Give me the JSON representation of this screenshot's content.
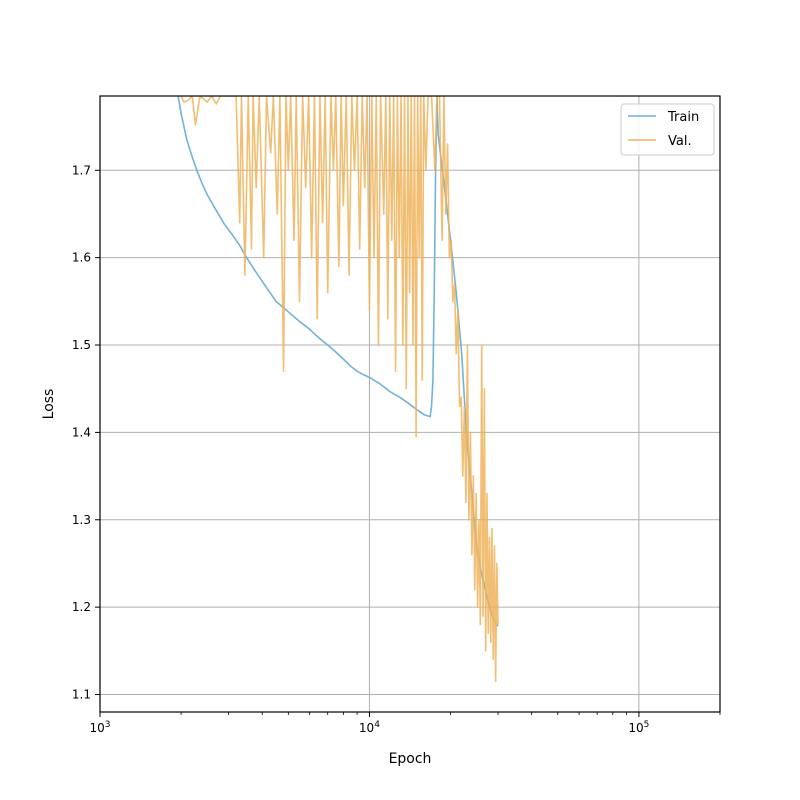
{
  "chart_data": {
    "type": "line",
    "title": "",
    "xlabel": "Epoch",
    "ylabel": "Loss",
    "xscale": "log",
    "xlim": [
      1000,
      200000
    ],
    "ylim": [
      1.08,
      1.785
    ],
    "grid": true,
    "legend_position": "top-right",
    "x_major_ticks": [
      {
        "value": 1000,
        "base": "10",
        "exp": "3"
      },
      {
        "value": 10000,
        "base": "10",
        "exp": "4"
      },
      {
        "value": 100000,
        "base": "10",
        "exp": "5"
      }
    ],
    "y_ticks": [
      {
        "value": 1.1,
        "label": "1.1"
      },
      {
        "value": 1.2,
        "label": "1.2"
      },
      {
        "value": 1.3,
        "label": "1.3"
      },
      {
        "value": 1.4,
        "label": "1.4"
      },
      {
        "value": 1.5,
        "label": "1.5"
      },
      {
        "value": 1.6,
        "label": "1.6"
      },
      {
        "value": 1.7,
        "label": "1.7"
      }
    ],
    "series": [
      {
        "name": "Train",
        "color": "#6baed6",
        "points": [
          [
            1950,
            1.785
          ],
          [
            2000,
            1.765
          ],
          [
            2100,
            1.735
          ],
          [
            2200,
            1.715
          ],
          [
            2300,
            1.698
          ],
          [
            2400,
            1.684
          ],
          [
            2500,
            1.672
          ],
          [
            2700,
            1.654
          ],
          [
            2900,
            1.638
          ],
          [
            3100,
            1.626
          ],
          [
            3300,
            1.614
          ],
          [
            3500,
            1.6
          ],
          [
            3800,
            1.583
          ],
          [
            4100,
            1.568
          ],
          [
            4500,
            1.55
          ],
          [
            5000,
            1.538
          ],
          [
            5500,
            1.527
          ],
          [
            6000,
            1.518
          ],
          [
            6500,
            1.508
          ],
          [
            7000,
            1.5
          ],
          [
            7500,
            1.492
          ],
          [
            8000,
            1.484
          ],
          [
            8500,
            1.476
          ],
          [
            9000,
            1.47
          ],
          [
            9500,
            1.466
          ],
          [
            10000,
            1.463
          ],
          [
            11000,
            1.455
          ],
          [
            12000,
            1.446
          ],
          [
            13000,
            1.44
          ],
          [
            14000,
            1.433
          ],
          [
            15000,
            1.426
          ],
          [
            16000,
            1.42
          ],
          [
            16800,
            1.418
          ],
          [
            17000,
            1.43
          ],
          [
            17200,
            1.46
          ],
          [
            17400,
            1.56
          ],
          [
            17600,
            1.7
          ],
          [
            17800,
            1.785
          ],
          [
            18000,
            1.74
          ],
          [
            19000,
            1.68
          ],
          [
            20000,
            1.62
          ],
          [
            21000,
            1.56
          ],
          [
            22000,
            1.49
          ],
          [
            23000,
            1.39
          ],
          [
            24000,
            1.33
          ],
          [
            25000,
            1.27
          ],
          [
            26000,
            1.24
          ],
          [
            27000,
            1.218
          ],
          [
            28000,
            1.198
          ],
          [
            29000,
            1.185
          ],
          [
            30000,
            1.178
          ]
        ]
      },
      {
        "name": "Val.",
        "color": "#f0b35a",
        "points": [
          [
            2000,
            1.785
          ],
          [
            2050,
            1.778
          ],
          [
            2120,
            1.78
          ],
          [
            2200,
            1.785
          ],
          [
            2260,
            1.752
          ],
          [
            2350,
            1.785
          ],
          [
            2500,
            1.778
          ],
          [
            2600,
            1.785
          ],
          [
            2700,
            1.776
          ],
          [
            2800,
            1.785
          ],
          [
            3200,
            1.785
          ],
          [
            3300,
            1.64
          ],
          [
            3350,
            1.785
          ],
          [
            3450,
            1.58
          ],
          [
            3550,
            1.785
          ],
          [
            3650,
            1.61
          ],
          [
            3700,
            1.785
          ],
          [
            3800,
            1.68
          ],
          [
            3900,
            1.785
          ],
          [
            4050,
            1.6
          ],
          [
            4150,
            1.785
          ],
          [
            4300,
            1.72
          ],
          [
            4400,
            1.785
          ],
          [
            4550,
            1.65
          ],
          [
            4650,
            1.785
          ],
          [
            4800,
            1.47
          ],
          [
            4900,
            1.785
          ],
          [
            5000,
            1.7
          ],
          [
            5100,
            1.785
          ],
          [
            5250,
            1.62
          ],
          [
            5350,
            1.785
          ],
          [
            5500,
            1.55
          ],
          [
            5650,
            1.785
          ],
          [
            5800,
            1.68
          ],
          [
            5950,
            1.785
          ],
          [
            6100,
            1.6
          ],
          [
            6250,
            1.785
          ],
          [
            6400,
            1.53
          ],
          [
            6550,
            1.785
          ],
          [
            6700,
            1.64
          ],
          [
            6850,
            1.785
          ],
          [
            7000,
            1.56
          ],
          [
            7200,
            1.785
          ],
          [
            7350,
            1.7
          ],
          [
            7500,
            1.785
          ],
          [
            7700,
            1.59
          ],
          [
            7850,
            1.785
          ],
          [
            8000,
            1.66
          ],
          [
            8200,
            1.785
          ],
          [
            8400,
            1.58
          ],
          [
            8600,
            1.785
          ],
          [
            8800,
            1.7
          ],
          [
            9000,
            1.785
          ],
          [
            9200,
            1.61
          ],
          [
            9400,
            1.785
          ],
          [
            9600,
            1.68
          ],
          [
            9800,
            1.785
          ],
          [
            10000,
            1.54
          ],
          [
            10200,
            1.785
          ],
          [
            10400,
            1.6
          ],
          [
            10600,
            1.785
          ],
          [
            10800,
            1.5
          ],
          [
            11000,
            1.785
          ],
          [
            11300,
            1.65
          ],
          [
            11500,
            1.785
          ],
          [
            11700,
            1.53
          ],
          [
            11900,
            1.785
          ],
          [
            12100,
            1.62
          ],
          [
            12300,
            1.785
          ],
          [
            12500,
            1.47
          ],
          [
            12700,
            1.785
          ],
          [
            12900,
            1.6
          ],
          [
            13100,
            1.785
          ],
          [
            13300,
            1.5
          ],
          [
            13500,
            1.785
          ],
          [
            13700,
            1.45
          ],
          [
            13900,
            1.785
          ],
          [
            14100,
            1.56
          ],
          [
            14300,
            1.785
          ],
          [
            14500,
            1.5
          ],
          [
            14700,
            1.785
          ],
          [
            14900,
            1.395
          ],
          [
            15100,
            1.785
          ],
          [
            15300,
            1.6
          ],
          [
            15500,
            1.785
          ],
          [
            15700,
            1.46
          ],
          [
            15900,
            1.785
          ],
          [
            16200,
            1.7
          ],
          [
            16500,
            1.785
          ],
          [
            17000,
            1.785
          ],
          [
            17500,
            1.7
          ],
          [
            17800,
            1.785
          ],
          [
            18200,
            1.785
          ],
          [
            18600,
            1.62
          ],
          [
            18900,
            1.785
          ],
          [
            19200,
            1.65
          ],
          [
            19500,
            1.73
          ],
          [
            19800,
            1.6
          ],
          [
            20100,
            1.62
          ],
          [
            20400,
            1.55
          ],
          [
            20700,
            1.57
          ],
          [
            21000,
            1.49
          ],
          [
            21300,
            1.54
          ],
          [
            21600,
            1.43
          ],
          [
            21900,
            1.44
          ],
          [
            22200,
            1.35
          ],
          [
            22500,
            1.43
          ],
          [
            22800,
            1.32
          ],
          [
            23100,
            1.5
          ],
          [
            23400,
            1.3
          ],
          [
            23700,
            1.4
          ],
          [
            24000,
            1.26
          ],
          [
            24300,
            1.35
          ],
          [
            24600,
            1.22
          ],
          [
            24900,
            1.33
          ],
          [
            25200,
            1.2
          ],
          [
            25500,
            1.3
          ],
          [
            25800,
            1.18
          ],
          [
            26100,
            1.5
          ],
          [
            26400,
            1.19
          ],
          [
            26700,
            1.45
          ],
          [
            27000,
            1.15
          ],
          [
            27300,
            1.33
          ],
          [
            27600,
            1.17
          ],
          [
            27900,
            1.28
          ],
          [
            28200,
            1.16
          ],
          [
            28500,
            1.29
          ],
          [
            28800,
            1.14
          ],
          [
            29100,
            1.27
          ],
          [
            29400,
            1.115
          ],
          [
            29700,
            1.25
          ],
          [
            30000,
            1.18
          ]
        ]
      }
    ]
  }
}
